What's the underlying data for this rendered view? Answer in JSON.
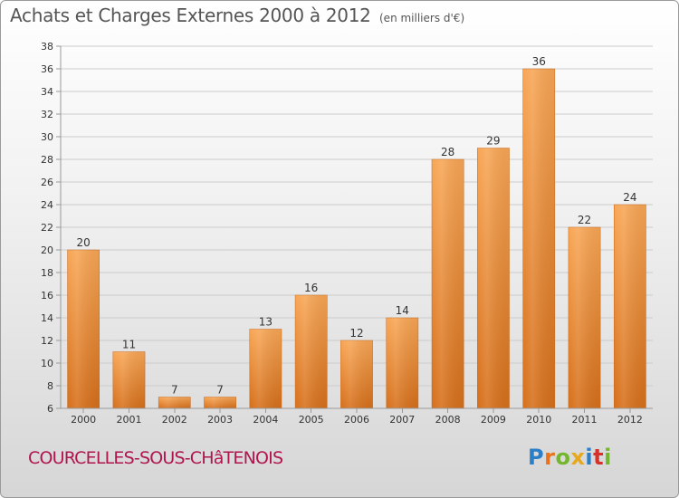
{
  "header": {
    "title": "Achats et Charges Externes 2000 à 2012",
    "unit": "(en milliers d'€)"
  },
  "footer": {
    "location": "COURCELLES-SOUS-CHâTENOIS",
    "brand": "Proxiti",
    "brand_letters": [
      {
        "char": "P",
        "color": "#2a7fc8"
      },
      {
        "char": "r",
        "color": "#e8731c"
      },
      {
        "char": "o",
        "color": "#74b62e"
      },
      {
        "char": "x",
        "color": "#e8a81c"
      },
      {
        "char": "i",
        "color": "#2a7fc8"
      },
      {
        "char": "t",
        "color": "#d6312b"
      },
      {
        "char": "i",
        "color": "#74b62e"
      }
    ]
  },
  "colors": {
    "bar_top": "#f8a655",
    "bar_bottom": "#d66f1a",
    "grid": "#cccccc",
    "axis": "#999999",
    "location": "#b0154e"
  },
  "chart_data": {
    "type": "bar",
    "title": "Achats et Charges Externes 2000 à 2012",
    "subtitle": "(en milliers d'€)",
    "xlabel": "",
    "ylabel": "",
    "categories": [
      "2000",
      "2001",
      "2002",
      "2003",
      "2004",
      "2005",
      "2006",
      "2007",
      "2008",
      "2009",
      "2010",
      "2011",
      "2012"
    ],
    "values": [
      20,
      11,
      7,
      7,
      13,
      16,
      12,
      14,
      28,
      29,
      36,
      22,
      24
    ],
    "ylim": [
      6,
      38
    ],
    "yticks": [
      6,
      8,
      10,
      12,
      14,
      16,
      18,
      20,
      22,
      24,
      26,
      28,
      30,
      32,
      34,
      36,
      38
    ],
    "grid": true,
    "legend": "none"
  }
}
